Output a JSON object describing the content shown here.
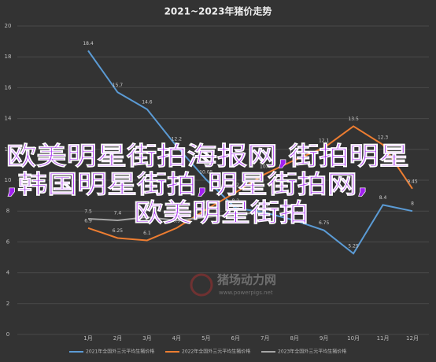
{
  "chart_data": {
    "type": "line",
    "title": "2021~2023年猪价走势",
    "categories": [
      "1月",
      "2月",
      "3月",
      "4月",
      "5月",
      "6月",
      "7月",
      "8月",
      "9月",
      "10月",
      "11月",
      "12月"
    ],
    "series": [
      {
        "name": "2021年全国外三元平均生猪价格",
        "color": "#5b9bd5",
        "values": [
          18.4,
          15.7,
          14.6,
          12.2,
          10.05,
          8.2,
          7.9,
          7.4,
          6.75,
          5.25,
          8.4,
          8.0
        ]
      },
      {
        "name": "2022年全国外三元平均生猪价格",
        "color": "#ed7d31",
        "values": [
          6.9,
          6.25,
          6.1,
          6.9,
          8.1,
          9.2,
          10.4,
          11.3,
          12.1,
          13.5,
          12.3,
          9.45
        ]
      },
      {
        "name": "2023年全国外三元平均生猪价格",
        "color": "#a5a5a5",
        "values": [
          7.5,
          7.4,
          7.6,
          7.4,
          7.6,
          7.8,
          7.9,
          null,
          null,
          null,
          null,
          null
        ]
      }
    ],
    "ylim": [
      0,
      20
    ],
    "yticks": [
      0,
      2,
      4,
      6,
      8,
      10,
      12,
      14,
      16,
      18,
      20
    ],
    "grid": true
  },
  "overlay_text": [
    "欧美明星街拍海报网,街拍明星",
    ",韩国明星街拍,明星街拍网,",
    "欧美明星街拍"
  ],
  "watermark": {
    "name": "猪场动力网",
    "url": "www.powerpigs.net"
  }
}
